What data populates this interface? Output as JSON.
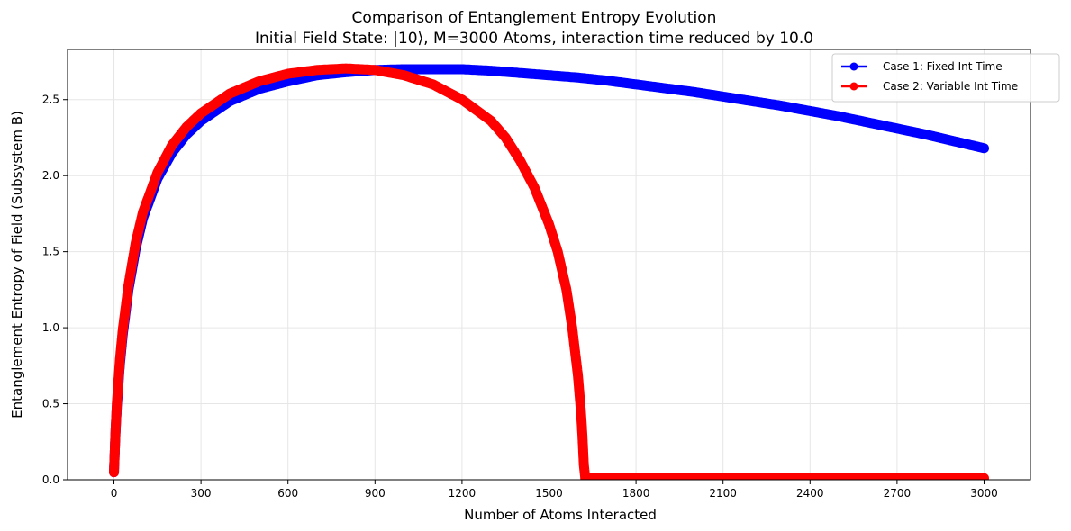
{
  "chart_data": {
    "type": "scatter",
    "title": "Comparison of Entanglement Entropy Evolution",
    "subtitle": "Initial Field State: |10⟩, M=3000 Atoms, interaction time reduced by 10.0",
    "xlabel": "Number of Atoms Interacted",
    "ylabel": "Entanglement Entropy of Field (Subsystem B)",
    "xlim": [
      -160,
      3160
    ],
    "ylim": [
      0,
      2.83
    ],
    "xticks": [
      0,
      300,
      600,
      900,
      1200,
      1500,
      1800,
      2100,
      2400,
      2700,
      3000
    ],
    "yticks": [
      0.0,
      0.5,
      1.0,
      1.5,
      2.0,
      2.5
    ],
    "xtick_labels": [
      "0",
      "300",
      "600",
      "900",
      "1200",
      "1500",
      "1800",
      "2100",
      "2400",
      "2700",
      "3000"
    ],
    "ytick_labels": [
      "0.0",
      "0.5",
      "1.0",
      "1.5",
      "2.0",
      "2.5"
    ],
    "grid": true,
    "legend_position": "top-right",
    "series": [
      {
        "name": "Case 1: Fixed Int Time",
        "color": "#0000ff",
        "x": [
          0,
          5,
          10,
          20,
          30,
          50,
          75,
          100,
          150,
          200,
          250,
          300,
          400,
          500,
          600,
          700,
          800,
          900,
          1000,
          1100,
          1200,
          1300,
          1400,
          1500,
          1600,
          1700,
          1800,
          1900,
          2000,
          2100,
          2200,
          2300,
          2400,
          2500,
          2600,
          2700,
          2800,
          2900,
          3000
        ],
        "y": [
          0.05,
          0.3,
          0.48,
          0.75,
          0.95,
          1.25,
          1.52,
          1.72,
          1.98,
          2.15,
          2.27,
          2.36,
          2.49,
          2.57,
          2.62,
          2.66,
          2.68,
          2.695,
          2.7,
          2.7,
          2.7,
          2.69,
          2.675,
          2.66,
          2.645,
          2.625,
          2.6,
          2.575,
          2.55,
          2.52,
          2.49,
          2.46,
          2.425,
          2.39,
          2.35,
          2.31,
          2.27,
          2.225,
          2.18
        ]
      },
      {
        "name": "Case 2: Variable Int Time",
        "color": "#ff0000",
        "x": [
          0,
          5,
          10,
          20,
          30,
          50,
          75,
          100,
          150,
          200,
          250,
          300,
          400,
          500,
          600,
          700,
          800,
          900,
          1000,
          1100,
          1200,
          1300,
          1350,
          1400,
          1450,
          1500,
          1530,
          1560,
          1580,
          1600,
          1610,
          1615,
          1620,
          1625,
          1700,
          1800,
          2000,
          2200,
          2400,
          2600,
          2800,
          3000
        ],
        "y": [
          0.05,
          0.3,
          0.5,
          0.78,
          0.98,
          1.28,
          1.56,
          1.76,
          2.02,
          2.2,
          2.32,
          2.41,
          2.54,
          2.62,
          2.67,
          2.695,
          2.705,
          2.695,
          2.66,
          2.6,
          2.5,
          2.36,
          2.25,
          2.1,
          1.92,
          1.68,
          1.5,
          1.25,
          1.0,
          0.68,
          0.45,
          0.3,
          0.1,
          0.01,
          0.01,
          0.01,
          0.01,
          0.01,
          0.01,
          0.01,
          0.01,
          0.01
        ]
      }
    ]
  }
}
